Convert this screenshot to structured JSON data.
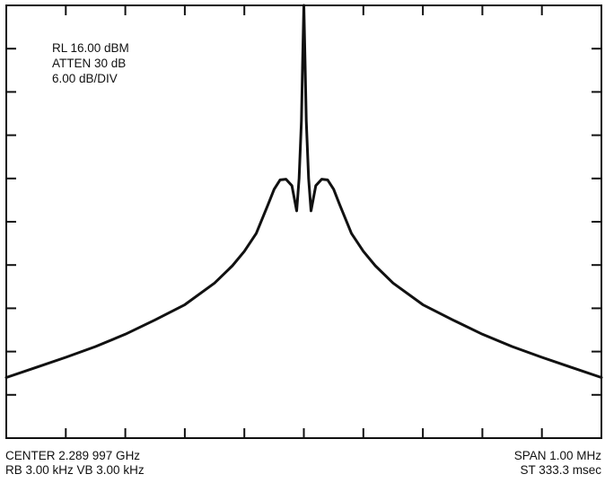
{
  "settings": {
    "ref_level": "RL 16.00 dBM",
    "attenuation": "ATTEN 30 dB",
    "scale": "6.00 dB/DIV"
  },
  "footer": {
    "center": "CENTER 2.289 997 GHz",
    "bandwidths": "RB 3.00 kHz VB 3.00 kHz",
    "span": "SPAN 1.00 MHz",
    "sweep_time": "ST 333.3 msec"
  },
  "chart_data": {
    "type": "line",
    "title": "",
    "xlabel": "",
    "ylabel": "",
    "x_unit": "MHz offset from center",
    "y_unit": "dBm",
    "xlim": [
      -0.5,
      0.5
    ],
    "ylim": [
      -44,
      16
    ],
    "x_divisions": 10,
    "y_divisions": 10,
    "grid": false,
    "tick_marks": true,
    "color": "#111111",
    "series": [
      {
        "x": [
          -0.5,
          -0.45,
          -0.4,
          -0.35,
          -0.3,
          -0.25,
          -0.2,
          -0.15,
          -0.12,
          -0.1,
          -0.08,
          -0.06,
          -0.05,
          -0.04,
          -0.03,
          -0.02,
          -0.012,
          -0.008,
          -0.004,
          -0.002,
          0,
          0.002,
          0.004,
          0.008,
          0.012,
          0.02,
          0.03,
          0.04,
          0.05,
          0.06,
          0.08,
          0.1,
          0.12,
          0.15,
          0.2,
          0.25,
          0.3,
          0.35,
          0.4,
          0.45,
          0.5
        ],
        "y": [
          -35.6,
          -34.2,
          -32.8,
          -31.3,
          -29.6,
          -27.6,
          -25.5,
          -22.5,
          -20.1,
          -18.1,
          -15.6,
          -11.6,
          -9.5,
          -8.2,
          -8.1,
          -9.0,
          -12.5,
          -8.0,
          0.0,
          8.5,
          16.0,
          8.5,
          0.0,
          -8.0,
          -12.5,
          -9.0,
          -8.1,
          -8.2,
          -9.5,
          -11.6,
          -15.6,
          -18.1,
          -20.1,
          -22.5,
          -25.5,
          -27.6,
          -29.6,
          -31.3,
          -32.8,
          -34.2,
          -35.6
        ]
      }
    ]
  }
}
